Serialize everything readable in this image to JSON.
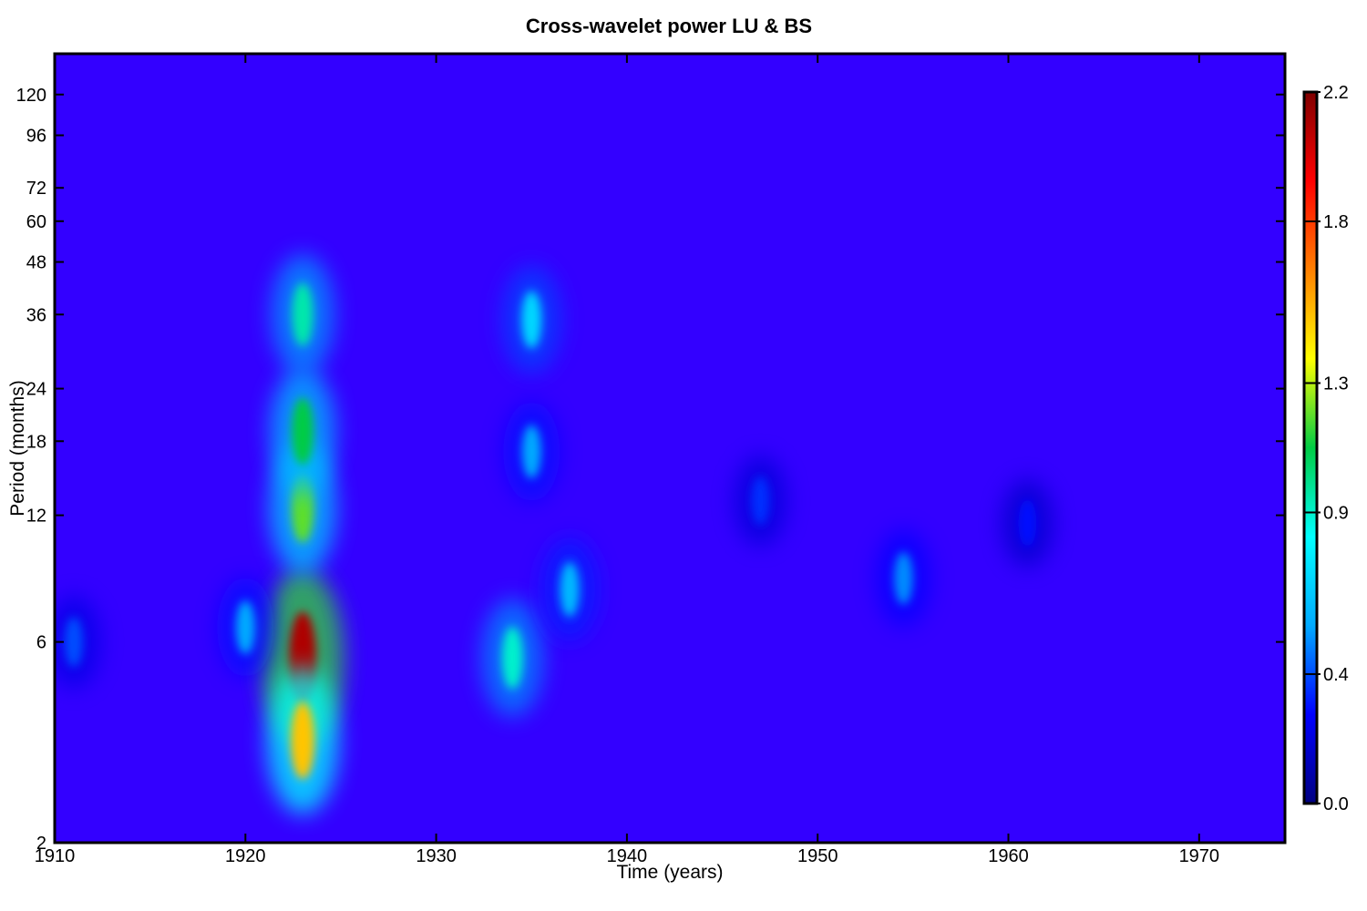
{
  "chart_data": {
    "type": "heatmap",
    "title": "Cross-wavelet power LU & BS",
    "xlabel": "Time (years)",
    "ylabel": "Period (months)",
    "xlim": [
      1910,
      1974.5
    ],
    "ylim": [
      2,
      150
    ],
    "yscale": "log",
    "xticks": [
      1910,
      1920,
      1930,
      1940,
      1950,
      1960,
      1970
    ],
    "yticks": [
      2,
      6,
      12,
      18,
      24,
      36,
      48,
      60,
      72,
      96,
      120
    ],
    "colorbar": {
      "ticks": [
        "0.0",
        "0.4",
        "0.9",
        "1.3",
        "1.8",
        "2.2"
      ],
      "tick_values": [
        0.0,
        0.4,
        0.9,
        1.3,
        1.8,
        2.2
      ],
      "range": [
        0.0,
        2.2
      ],
      "colormap": [
        "#000080",
        "#0000ff",
        "#00aaff",
        "#00ffff",
        "#00cc44",
        "#ffff00",
        "#ff8000",
        "#ff0000",
        "#800000"
      ]
    },
    "background_color": "#3300ff",
    "features": [
      {
        "x": 1923.0,
        "y": 5.5,
        "value": 2.1
      },
      {
        "x": 1923.0,
        "y": 3.5,
        "value": 1.5
      },
      {
        "x": 1923.0,
        "y": 12.5,
        "value": 1.2
      },
      {
        "x": 1923.0,
        "y": 19.0,
        "value": 1.1
      },
      {
        "x": 1923.0,
        "y": 36.0,
        "value": 0.95
      },
      {
        "x": 1935.0,
        "y": 35.0,
        "value": 0.7
      },
      {
        "x": 1934.0,
        "y": 5.5,
        "value": 0.9
      },
      {
        "x": 1937.0,
        "y": 8.0,
        "value": 0.6
      },
      {
        "x": 1935.0,
        "y": 17.0,
        "value": 0.55
      },
      {
        "x": 1920.0,
        "y": 6.5,
        "value": 0.55
      },
      {
        "x": 1954.5,
        "y": 8.5,
        "value": 0.5
      },
      {
        "x": 1947.0,
        "y": 13.0,
        "value": 0.35
      },
      {
        "x": 1961.0,
        "y": 11.5,
        "value": 0.3
      },
      {
        "x": 1911.0,
        "y": 6.0,
        "value": 0.4
      }
    ]
  }
}
